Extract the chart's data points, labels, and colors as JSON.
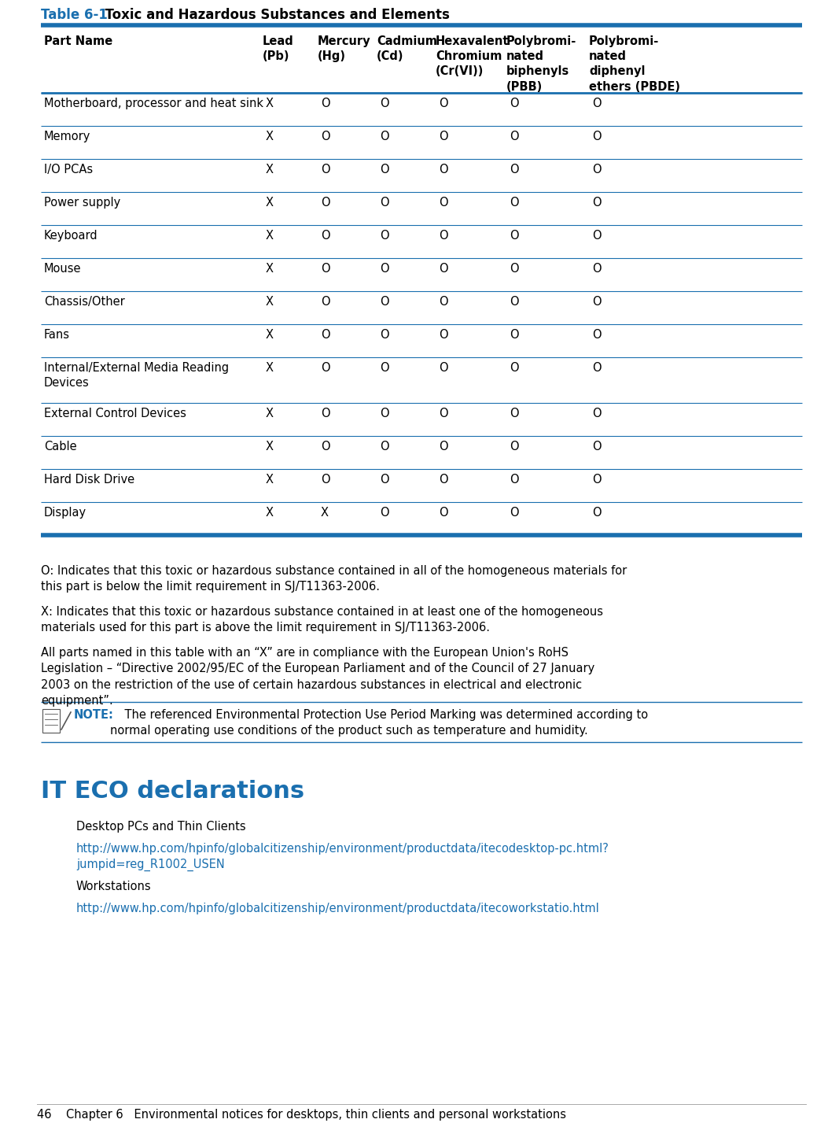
{
  "title_prefix": "Table 6-1",
  "title_text": "  Toxic and Hazardous Substances and Elements",
  "title_color_prefix": "#1a6faf",
  "title_color_text": "#000000",
  "col_headers": [
    "Part Name",
    "Lead\n(Pb)",
    "Mercury\n(Hg)",
    "Cadmium\n(Cd)",
    "Hexavalent\nChromium\n(Cr(VI))",
    "Polybromi-\nnated\nbiphenyls\n(PBB)",
    "Polybromi-\nnated\ndiphenyl\nethers (PBDE)"
  ],
  "rows": [
    [
      "Motherboard, processor and heat sink",
      "X",
      "O",
      "O",
      "O",
      "O",
      "O"
    ],
    [
      "Memory",
      "X",
      "O",
      "O",
      "O",
      "O",
      "O"
    ],
    [
      "I/O PCAs",
      "X",
      "O",
      "O",
      "O",
      "O",
      "O"
    ],
    [
      "Power supply",
      "X",
      "O",
      "O",
      "O",
      "O",
      "O"
    ],
    [
      "Keyboard",
      "X",
      "O",
      "O",
      "O",
      "O",
      "O"
    ],
    [
      "Mouse",
      "X",
      "O",
      "O",
      "O",
      "O",
      "O"
    ],
    [
      "Chassis/Other",
      "X",
      "O",
      "O",
      "O",
      "O",
      "O"
    ],
    [
      "Fans",
      "X",
      "O",
      "O",
      "O",
      "O",
      "O"
    ],
    [
      "Internal/External Media Reading\nDevices",
      "X",
      "O",
      "O",
      "O",
      "O",
      "O"
    ],
    [
      "External Control Devices",
      "X",
      "O",
      "O",
      "O",
      "O",
      "O"
    ],
    [
      "Cable",
      "X",
      "O",
      "O",
      "O",
      "O",
      "O"
    ],
    [
      "Hard Disk Drive",
      "X",
      "O",
      "O",
      "O",
      "O",
      "O"
    ],
    [
      "Display",
      "X",
      "X",
      "O",
      "O",
      "O",
      "O"
    ]
  ],
  "footer_text_O": "O: Indicates that this toxic or hazardous substance contained in all of the homogeneous materials for\nthis part is below the limit requirement in SJ/T11363-2006.",
  "footer_text_X": "X: Indicates that this toxic or hazardous substance contained in at least one of the homogeneous\nmaterials used for this part is above the limit requirement in SJ/T11363-2006.",
  "footer_text_all": "All parts named in this table with an “X” are in compliance with the European Union's RoHS\nLegislation – “Directive 2002/95/EC of the European Parliament and of the Council of 27 January\n2003 on the restriction of the use of certain hazardous substances in electrical and electronic\nequipment”.",
  "note_label": "NOTE:",
  "note_text": "    The referenced Environmental Protection Use Period Marking was determined according to\nnormal operating use conditions of the product such as temperature and humidity.",
  "section_title": "IT ECO declarations",
  "section_title_color": "#1a6faf",
  "subsection1": "Desktop PCs and Thin Clients",
  "link1": "http://www.hp.com/hpinfo/globalcitizenship/environment/productdata/itecodesktop-pc.html?\njumpid=reg_R1002_USEN",
  "link1_color": "#1a6faf",
  "subsection2": "Workstations",
  "link2": "http://www.hp.com/hpinfo/globalcitizenship/environment/productdata/itecoworkstatio.html",
  "link2_color": "#1a6faf",
  "footer_page": "46    Chapter 6   Environmental notices for desktops, thin clients and personal workstations",
  "bg_color": "#ffffff",
  "line_color": "#1a6faf",
  "row_line_color": "#1a6faf",
  "text_color": "#000000",
  "font_size_body": 10.5,
  "font_size_header_col": 10.5,
  "font_size_title": 12,
  "font_size_section": 22,
  "font_size_footer": 10.5
}
